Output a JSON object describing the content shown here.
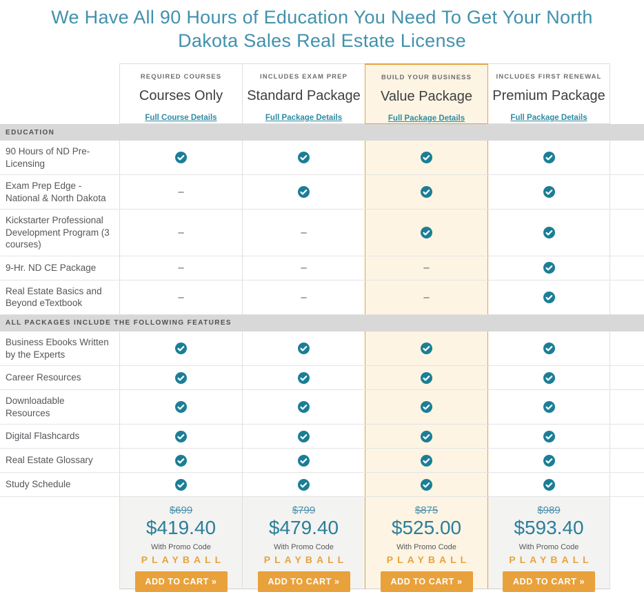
{
  "header": {
    "title": "We Have All 90 Hours of Education You Need To Get Your North Dakota Sales Real Estate License"
  },
  "colors": {
    "title_teal": "#4191ac",
    "link_teal": "#2d8ca3",
    "check_teal": "#1b7e97",
    "gold_button": "#e9a13b",
    "gold_border": "#e2a33e",
    "highlight_cream": "#fdf4e3",
    "section_bar_gray": "#d8d8d8",
    "price_cell_gray": "#f3f3f1"
  },
  "table": {
    "columns": [
      {
        "tagline": "REQUIRED COURSES",
        "name": "Courses Only",
        "details_link": "Full Course Details",
        "highlighted": false,
        "pricing": {
          "old_price": "$699",
          "price": "$419.40",
          "promo_label": "With Promo Code",
          "promo_code": "PLAYBALL",
          "cta": "ADD TO CART »"
        }
      },
      {
        "tagline": "INCLUDES EXAM PREP",
        "name": "Standard Package",
        "details_link": "Full Package Details",
        "highlighted": false,
        "pricing": {
          "old_price": "$799",
          "price": "$479.40",
          "promo_label": "With Promo Code",
          "promo_code": "PLAYBALL",
          "cta": "ADD TO CART »"
        }
      },
      {
        "tagline": "BUILD YOUR BUSINESS",
        "name": "Value Package",
        "details_link": "Full Package Details",
        "highlighted": true,
        "pricing": {
          "old_price": "$875",
          "price": "$525.00",
          "promo_label": "With Promo Code",
          "promo_code": "PLAYBALL",
          "cta": "ADD TO CART »"
        }
      },
      {
        "tagline": "INCLUDES FIRST RENEWAL",
        "name": "Premium Package",
        "details_link": "Full Package Details",
        "highlighted": false,
        "pricing": {
          "old_price": "$989",
          "price": "$593.40",
          "promo_label": "With Promo Code",
          "promo_code": "PLAYBALL",
          "cta": "ADD TO CART »"
        }
      }
    ],
    "sections": [
      {
        "label": "EDUCATION",
        "rows": [
          {
            "feature": "90 Hours of ND Pre-Licensing",
            "values": [
              "check",
              "check",
              "check",
              "check"
            ]
          },
          {
            "feature": "Exam Prep Edge - National & North Dakota",
            "values": [
              "dash",
              "check",
              "check",
              "check"
            ]
          },
          {
            "feature": "Kickstarter Professional Development Program (3 courses)",
            "values": [
              "dash",
              "dash",
              "check",
              "check"
            ]
          },
          {
            "feature": "9-Hr. ND CE Package",
            "values": [
              "dash",
              "dash",
              "dash",
              "check"
            ]
          },
          {
            "feature": "Real Estate Basics and Beyond eTextbook",
            "values": [
              "dash",
              "dash",
              "dash",
              "check"
            ]
          }
        ]
      },
      {
        "label": "ALL PACKAGES INCLUDE THE FOLLOWING FEATURES",
        "rows": [
          {
            "feature": "Business Ebooks Written by the Experts",
            "values": [
              "check",
              "check",
              "check",
              "check"
            ]
          },
          {
            "feature": "Career Resources",
            "values": [
              "check",
              "check",
              "check",
              "check"
            ]
          },
          {
            "feature": "Downloadable Resources",
            "values": [
              "check",
              "check",
              "check",
              "check"
            ]
          },
          {
            "feature": "Digital Flashcards",
            "values": [
              "check",
              "check",
              "check",
              "check"
            ]
          },
          {
            "feature": "Real Estate Glossary",
            "values": [
              "check",
              "check",
              "check",
              "check"
            ]
          },
          {
            "feature": "Study Schedule",
            "values": [
              "check",
              "check",
              "check",
              "check"
            ]
          }
        ]
      }
    ]
  }
}
